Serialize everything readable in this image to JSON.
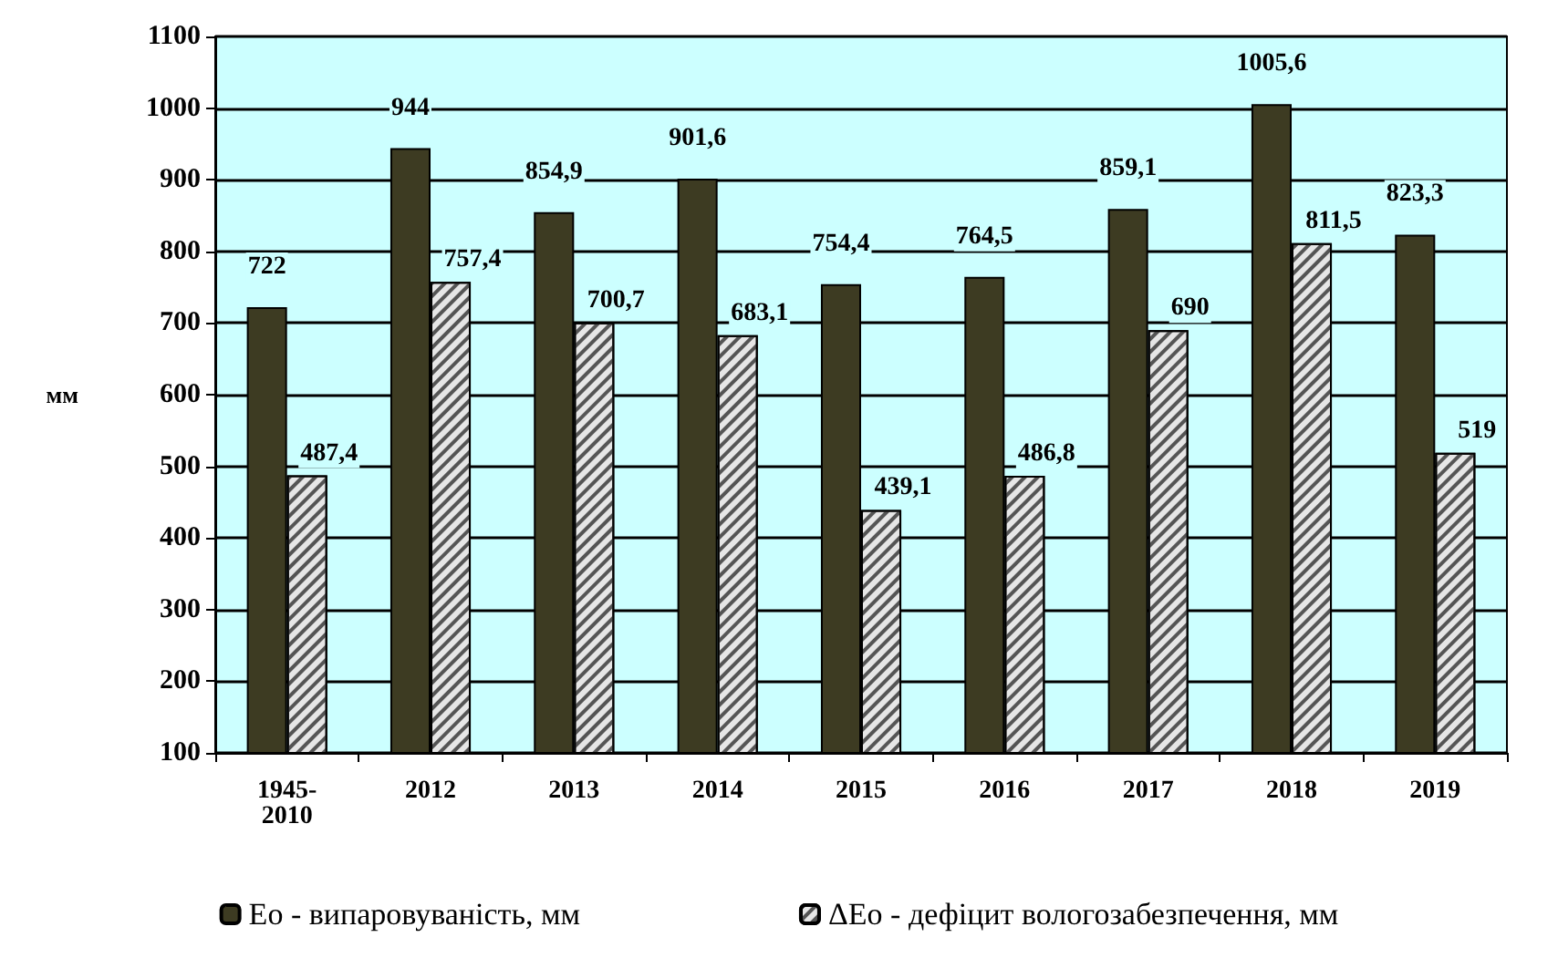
{
  "chart_data": {
    "type": "bar",
    "ylabel": "мм",
    "categories": [
      "1945-\n2010",
      "2012",
      "2013",
      "2014",
      "2015",
      "2016",
      "2017",
      "2018",
      "2019"
    ],
    "series": [
      {
        "name": "Ео - випаровуваність, мм",
        "color": "#3d3b22",
        "values": [
          722,
          944,
          854.9,
          901.6,
          754.4,
          764.5,
          859.1,
          1005.6,
          823.3
        ],
        "value_labels": [
          "722",
          "944",
          "854,9",
          "901,6",
          "754,4",
          "764,5",
          "859,1",
          "1005,6",
          "823,3"
        ]
      },
      {
        "name": "ΔЕо - дефіцит вологозабезпечення, мм",
        "color": "#e6e6e6",
        "values": [
          487.4,
          757.4,
          700.7,
          683.1,
          439.1,
          486.8,
          690,
          811.5,
          519
        ],
        "value_labels": [
          "487,4",
          "757,4",
          "700,7",
          "683,1",
          "439,1",
          "486,8",
          "690",
          "811,5",
          "519"
        ]
      }
    ],
    "ylim": [
      100,
      1100
    ],
    "yticks": [
      100,
      200,
      300,
      400,
      500,
      600,
      700,
      800,
      900,
      1000,
      1100
    ],
    "grid": "y",
    "legend": "bottom"
  }
}
